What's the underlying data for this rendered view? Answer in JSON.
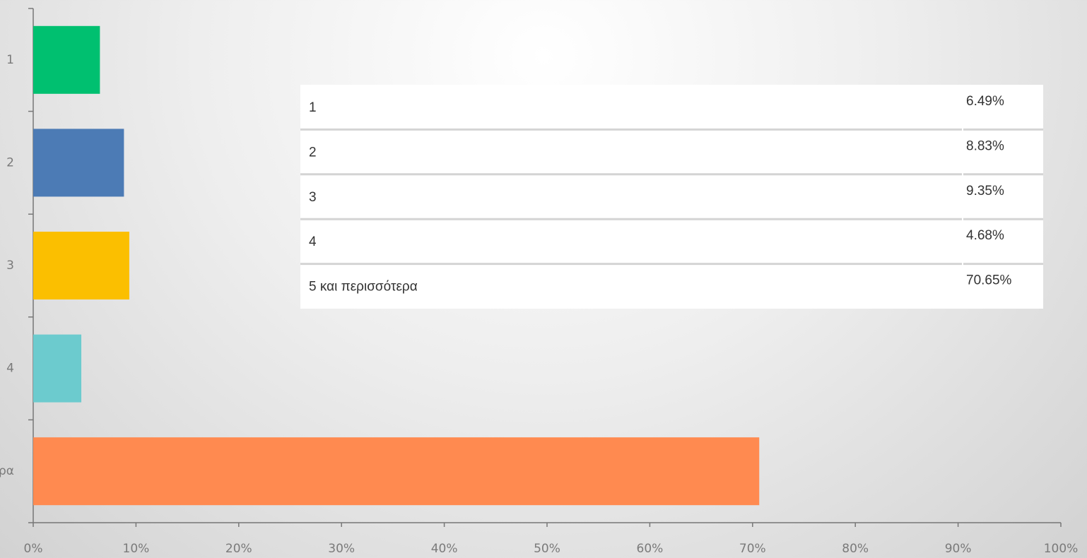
{
  "chart_data": {
    "type": "barh",
    "categories": [
      "1",
      "2",
      "3",
      "4",
      "5 και περισσότερα"
    ],
    "values": [
      6.49,
      8.83,
      9.35,
      4.68,
      70.65
    ],
    "value_labels": [
      "6.49%",
      "8.83%",
      "9.35%",
      "4.68%",
      "70.65%"
    ],
    "colors": [
      "#00c070",
      "#4c7bb5",
      "#fbbf00",
      "#6ccbce",
      "#ff8a50"
    ],
    "xlim": [
      0,
      100
    ],
    "xticks": [
      {
        "value": 0,
        "label": "0%"
      },
      {
        "value": 10,
        "label": "10%"
      },
      {
        "value": 20,
        "label": "20%"
      },
      {
        "value": 30,
        "label": "30%"
      },
      {
        "value": 40,
        "label": "40%"
      },
      {
        "value": 50,
        "label": "50%"
      },
      {
        "value": 60,
        "label": "60%"
      },
      {
        "value": 70,
        "label": "70%"
      },
      {
        "value": 80,
        "label": "80%"
      },
      {
        "value": 90,
        "label": "90%"
      },
      {
        "value": 100,
        "label": "100%"
      }
    ],
    "grid": false
  }
}
